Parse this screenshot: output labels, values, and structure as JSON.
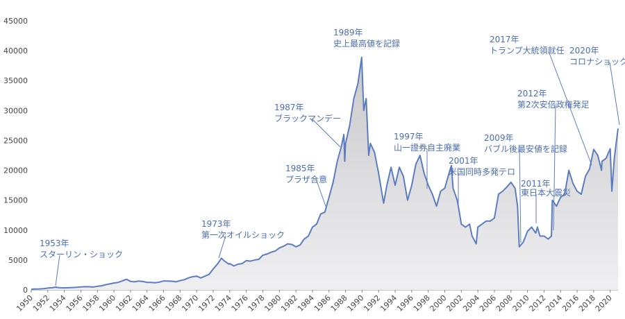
{
  "chart_data": {
    "type": "line",
    "color": "#5b7dc0",
    "x": [
      1950,
      1950.5,
      1951,
      1951.5,
      1952,
      1952.5,
      1953,
      1953.2,
      1953.5,
      1954,
      1954.5,
      1955,
      1955.5,
      1956,
      1956.5,
      1957,
      1957.5,
      1958,
      1958.5,
      1959,
      1959.5,
      1960,
      1960.5,
      1961,
      1961.5,
      1962,
      1962.5,
      1963,
      1963.5,
      1964,
      1964.5,
      1965,
      1965.5,
      1966,
      1966.5,
      1967,
      1967.5,
      1968,
      1968.5,
      1969,
      1969.5,
      1970,
      1970.5,
      1971,
      1971.5,
      1972,
      1972.5,
      1973,
      1973.3,
      1973.9,
      1974,
      1974.5,
      1975,
      1975.5,
      1976,
      1976.5,
      1977,
      1977.5,
      1978,
      1978.5,
      1979,
      1979.5,
      1980,
      1980.5,
      1981,
      1981.5,
      1982,
      1982.5,
      1983,
      1983.5,
      1984,
      1984.5,
      1985,
      1985.5,
      1986,
      1986.5,
      1987,
      1987.5,
      1987.8,
      1987.9,
      1988,
      1988.5,
      1989,
      1989.5,
      1989.95,
      1990.2,
      1990.5,
      1990.8,
      1991,
      1991.5,
      1992,
      1992.6,
      1993,
      1993.5,
      1994,
      1994.5,
      1995,
      1995.5,
      1996,
      1996.5,
      1997,
      1997.5,
      1998,
      1998.5,
      1999,
      1999.5,
      2000,
      2000.3,
      2000.8,
      2001,
      2001.5,
      2001.7,
      2002,
      2002.5,
      2003,
      2003.3,
      2003.8,
      2004,
      2004.5,
      2005,
      2005.5,
      2006,
      2006.5,
      2007,
      2007.5,
      2008,
      2008.5,
      2008.8,
      2009,
      2009.5,
      2010,
      2010.5,
      2011,
      2011.2,
      2011.5,
      2012,
      2012.5,
      2012.9,
      2013,
      2013.5,
      2014,
      2014.5,
      2015,
      2015.5,
      2016,
      2016.5,
      2017,
      2017.5,
      2018,
      2018.5,
      2018.95,
      2019,
      2019.5,
      2020,
      2020.2,
      2020.5,
      2020.95
    ],
    "values": [
      110,
      150,
      160,
      200,
      300,
      360,
      460,
      400,
      350,
      340,
      360,
      400,
      430,
      500,
      530,
      520,
      480,
      600,
      680,
      870,
      1000,
      1150,
      1250,
      1500,
      1780,
      1430,
      1350,
      1480,
      1400,
      1250,
      1250,
      1200,
      1300,
      1500,
      1480,
      1450,
      1350,
      1550,
      1700,
      2000,
      2200,
      2300,
      2000,
      2300,
      2600,
      3500,
      4300,
      5300,
      4900,
      4300,
      4400,
      4000,
      4300,
      4400,
      4900,
      4800,
      5000,
      5100,
      5800,
      6000,
      6300,
      6500,
      7000,
      7300,
      7700,
      7600,
      7200,
      7500,
      8500,
      9000,
      10500,
      11000,
      12700,
      13000,
      15500,
      18000,
      21500,
      24000,
      26000,
      21500,
      24500,
      27500,
      32000,
      34500,
      38900,
      30000,
      32000,
      22500,
      24500,
      23000,
      19500,
      14500,
      17500,
      20500,
      17500,
      20500,
      19000,
      15000,
      17500,
      21000,
      22500,
      19500,
      17500,
      16000,
      14000,
      16500,
      17000,
      18500,
      20800,
      17000,
      15000,
      13500,
      11000,
      10500,
      11000,
      9000,
      7700,
      10500,
      11000,
      11500,
      11500,
      12000,
      16000,
      16500,
      17200,
      18000,
      17000,
      14000,
      7200,
      8000,
      9800,
      10500,
      9500,
      10500,
      9000,
      9000,
      8500,
      9000,
      15000,
      14000,
      15500,
      16000,
      20000,
      17800,
      16500,
      16000,
      19000,
      20200,
      23500,
      22500,
      20000,
      21500,
      22000,
      23600,
      16500,
      22000,
      27000
    ],
    "xlim": [
      1950,
      2020.95
    ],
    "ylim": [
      0,
      45000
    ],
    "xticks": [
      1950,
      1952,
      1954,
      1956,
      1958,
      1960,
      1962,
      1964,
      1966,
      1968,
      1970,
      1972,
      1974,
      1976,
      1978,
      1980,
      1982,
      1984,
      1986,
      1988,
      1990,
      1992,
      1994,
      1996,
      1998,
      2000,
      2002,
      2004,
      2006,
      2008,
      2010,
      2012,
      2014,
      2016,
      2018,
      2020
    ],
    "yticks": [
      0,
      5000,
      10000,
      15000,
      20000,
      25000,
      30000,
      35000,
      40000,
      45000
    ],
    "annotations": [
      [
        "1953年",
        "スターリン・ショック"
      ],
      [
        "1973年",
        "第一次オイルショック"
      ],
      [
        "1985年",
        "プラザ合意"
      ],
      [
        "1987年",
        "ブラックマンデー"
      ],
      [
        "1989年",
        "史上最高値を記録"
      ],
      [
        "1997年",
        "山一證券自主廃業"
      ],
      [
        "2001年",
        "米国同時多発テロ"
      ],
      [
        "2009年",
        "バブル後最安値を記録"
      ],
      [
        "2011年",
        "東日本大震災"
      ],
      [
        "2012年",
        "第2次安倍政権発足"
      ],
      [
        "2017年",
        "トランプ大統領就任"
      ],
      [
        "2020年",
        "コロナショック"
      ]
    ]
  }
}
